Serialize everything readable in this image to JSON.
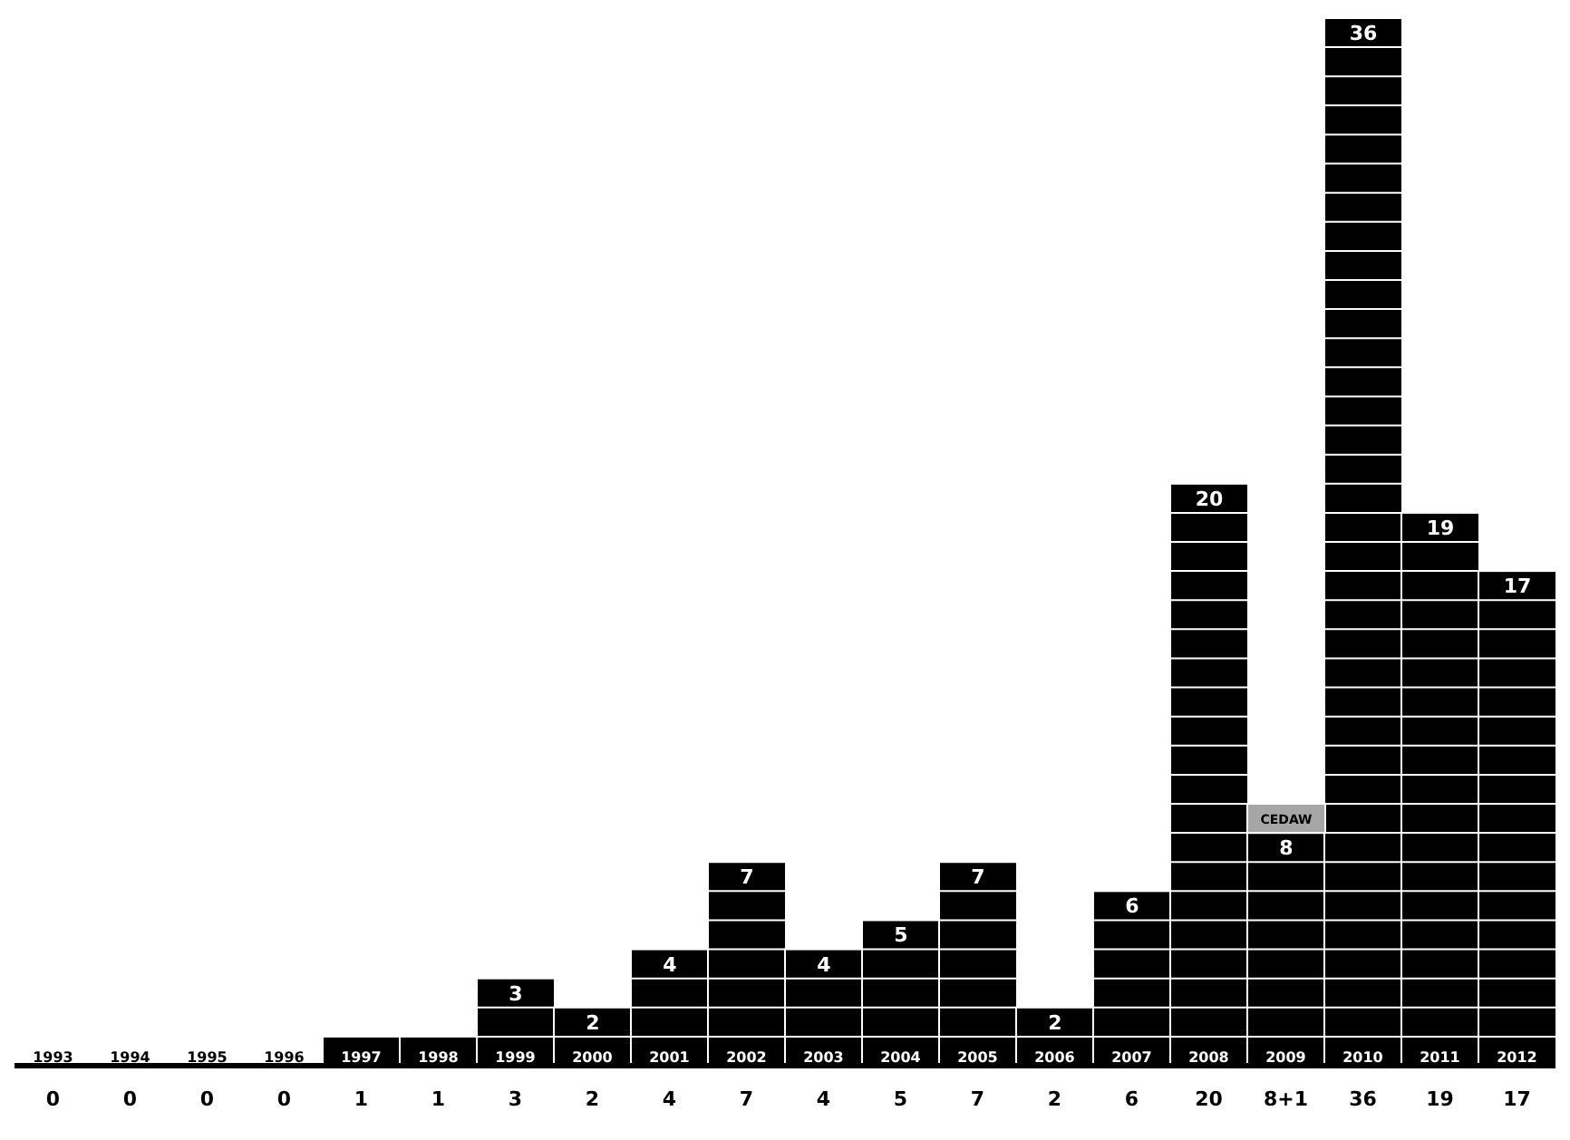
{
  "chart_data": {
    "type": "bar",
    "stacked": true,
    "categories": [
      "1993",
      "1994",
      "1995",
      "1996",
      "1997",
      "1998",
      "1999",
      "2000",
      "2001",
      "2002",
      "2003",
      "2004",
      "2005",
      "2006",
      "2007",
      "2008",
      "2009",
      "2010",
      "2011",
      "2012"
    ],
    "series": [
      {
        "color": "#000000",
        "values": [
          0,
          0,
          0,
          0,
          1,
          1,
          3,
          2,
          4,
          7,
          4,
          5,
          7,
          2,
          6,
          20,
          8,
          36,
          19,
          17
        ],
        "value_labels": [
          null,
          null,
          null,
          null,
          null,
          null,
          "3",
          "2",
          "4",
          "7",
          "4",
          "5",
          "7",
          "2",
          "6",
          "20",
          "8",
          "36",
          "19",
          "17"
        ]
      },
      {
        "name": "CEDAW",
        "color": "#a6a6a6",
        "values": [
          null,
          null,
          null,
          null,
          null,
          null,
          null,
          null,
          null,
          null,
          null,
          null,
          null,
          null,
          null,
          null,
          1,
          null,
          null,
          null
        ]
      }
    ],
    "totals": [
      "0",
      "0",
      "0",
      "0",
      "1",
      "1",
      "3",
      "2",
      "4",
      "7",
      "4",
      "5",
      "7",
      "2",
      "6",
      "20",
      "8+1",
      "36",
      "19",
      "17"
    ],
    "ylim": [
      0,
      36
    ]
  }
}
